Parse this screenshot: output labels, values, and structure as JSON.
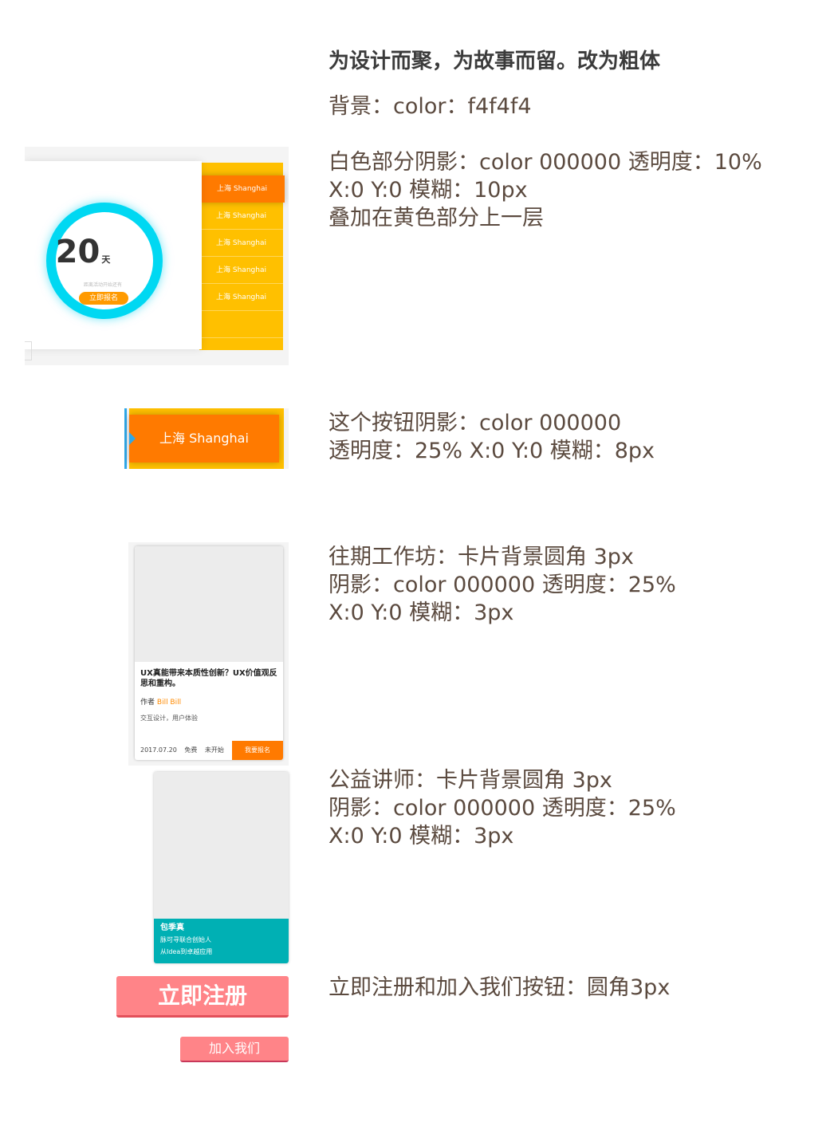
{
  "heading": "为设计而聚，为故事而留。改为粗体",
  "background_note": "背景：color：f4f4f4",
  "white_shadow_note": [
    "白色部分阴影：color 000000 透明度：10%",
    "X:0 Y:0 模糊：10px",
    "叠加在黄色部分上一层"
  ],
  "button_shadow_note": [
    "这个按钮阴影：color 000000",
    "透明度：25% X:0 Y:0 模糊：8px"
  ],
  "workshop_note": [
    "往期工作坊：卡片背景圆角 3px",
    "阴影：color 000000 透明度：25%",
    "X:0 Y:0 模糊：3px"
  ],
  "lecturer_note": [
    "公益讲师：卡片背景圆角 3px",
    "阴影：color 000000 透明度：25%",
    "X:0 Y:0 模糊：3px"
  ],
  "buttons_note": "立即注册和加入我们按钮：圆角3px",
  "countdown": {
    "days": "20",
    "unit": "天",
    "subtitle": "距离活动开始还有",
    "register_label": "立即报名",
    "cities": [
      "上海  Shanghai",
      "上海  Shanghai",
      "上海  Shanghai",
      "上海  Shanghai",
      "上海  Shanghai"
    ]
  },
  "sample_button": {
    "label": "上海   Shanghai"
  },
  "workshop_card": {
    "title": "UX真能带来本质性创新？UX价值观反思和重构。",
    "author_label": "作者",
    "author_name": "Bill Bill",
    "tags": "交互设计，用户体验",
    "date": "2017.07.20",
    "fee": "免费",
    "status": "未开始",
    "join_label": "我要报名"
  },
  "lecturer_card": {
    "name": "包季真",
    "line1": "脉可寻联合创始人",
    "line2": "从Idea到卓越应用"
  },
  "register_label": "立即注册",
  "join_label": "加入我们",
  "colors": {
    "orange": "#ff7a00",
    "yellow": "#ffc000",
    "cyan": "#00d8f2",
    "teal": "#00b0b4",
    "pink": "#ff8488",
    "bg": "#f4f4f4"
  }
}
